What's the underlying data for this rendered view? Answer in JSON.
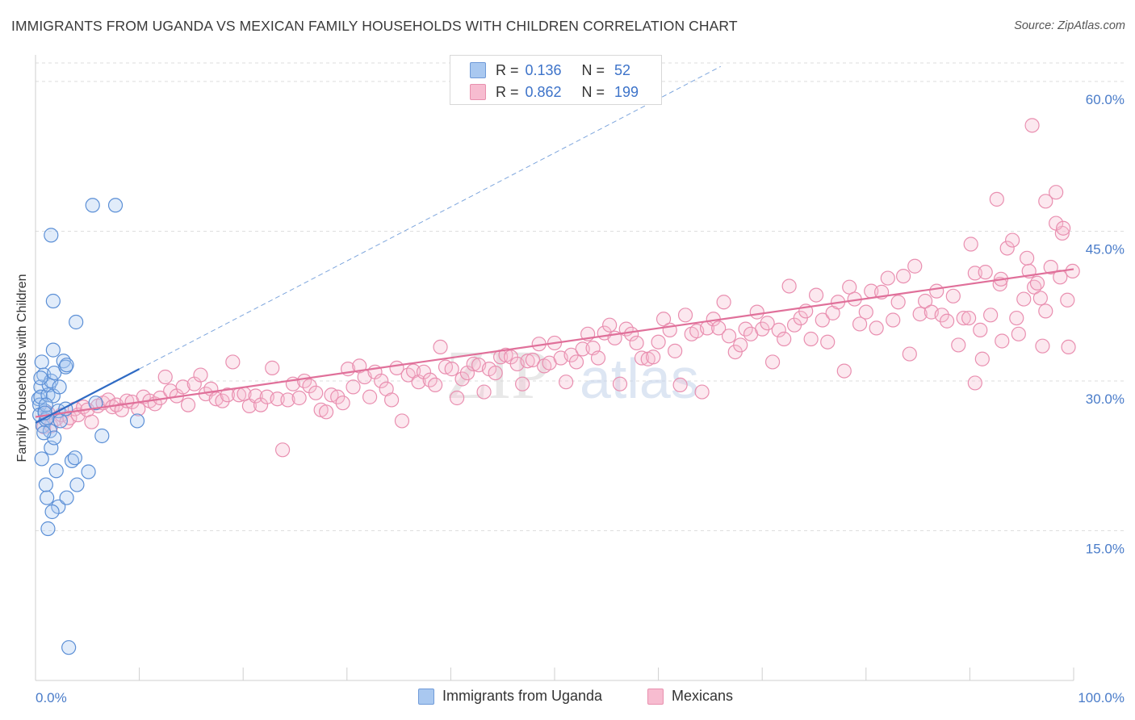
{
  "header": {
    "title": "IMMIGRANTS FROM UGANDA VS MEXICAN FAMILY HOUSEHOLDS WITH CHILDREN CORRELATION CHART",
    "source": "Source: ZipAtlas.com"
  },
  "watermark": {
    "text_zip": "ZIP",
    "text_atlas": "atlas"
  },
  "legend": {
    "rows": [
      {
        "r_label": "R =",
        "r_value": "0.136",
        "n_label": "N =",
        "n_value": "52",
        "color": "#a9c8f0",
        "border": "#6f9ad8"
      },
      {
        "r_label": "R =",
        "r_value": "0.862",
        "n_label": "N =",
        "n_value": "199",
        "color": "#f7bcd0",
        "border": "#e890ae"
      }
    ]
  },
  "bottom_legend": {
    "items": [
      {
        "label": "Immigrants from Uganda",
        "color": "#a9c8f0",
        "border": "#6f9ad8"
      },
      {
        "label": "Mexicans",
        "color": "#f7bcd0",
        "border": "#e890ae"
      }
    ]
  },
  "colors": {
    "uganda_fill": "rgba(169,200,240,0.35)",
    "uganda_stroke": "#5b8fd6",
    "uganda_line": "#2f6bc4",
    "mexican_fill": "rgba(247,188,208,0.35)",
    "mexican_stroke": "#e98fb0",
    "mexican_line": "#e0709a",
    "grid": "#dedede",
    "tick_text": "#4a7cc9"
  },
  "chart_data": {
    "type": "scatter",
    "title": "IMMIGRANTS FROM UGANDA VS MEXICAN FAMILY HOUSEHOLDS WITH CHILDREN CORRELATION CHART",
    "xlabel": "",
    "ylabel": "Family Households with Children",
    "x_ticks": [
      "0.0%",
      "100.0%"
    ],
    "y_ticks": [
      "15.0%",
      "30.0%",
      "45.0%",
      "60.0%"
    ],
    "y_tick_values": [
      15,
      30,
      45,
      60
    ],
    "xlim": [
      0,
      100
    ],
    "ylim": [
      0,
      62.5
    ],
    "grid": true,
    "series": [
      {
        "name": "Immigrants from Uganda",
        "r": 0.136,
        "n": 52,
        "trend": {
          "x": [
            0,
            10
          ],
          "y": [
            25.8,
            31.2
          ]
        },
        "trend_extended": {
          "x": [
            10,
            66
          ],
          "y": [
            31.2,
            61.5
          ]
        },
        "points": [
          [
            0.3,
            28.2
          ],
          [
            0.4,
            27.6
          ],
          [
            0.5,
            29.4
          ],
          [
            0.6,
            31.9
          ],
          [
            0.4,
            26.6
          ],
          [
            0.7,
            25.5
          ],
          [
            0.5,
            28.4
          ],
          [
            0.8,
            30.6
          ],
          [
            0.9,
            27.0
          ],
          [
            1.0,
            26.1
          ],
          [
            1.2,
            28.6
          ],
          [
            1.3,
            29.6
          ],
          [
            1.5,
            30.0
          ],
          [
            1.7,
            28.5
          ],
          [
            1.4,
            25.0
          ],
          [
            1.1,
            26.3
          ],
          [
            0.6,
            22.2
          ],
          [
            1.0,
            19.6
          ],
          [
            1.1,
            18.3
          ],
          [
            1.5,
            23.3
          ],
          [
            1.8,
            24.3
          ],
          [
            2.0,
            21.0
          ],
          [
            2.2,
            17.4
          ],
          [
            1.6,
            16.9
          ],
          [
            1.2,
            15.2
          ],
          [
            1.8,
            30.8
          ],
          [
            2.3,
            29.4
          ],
          [
            1.7,
            33.1
          ],
          [
            2.7,
            32.0
          ],
          [
            2.9,
            31.4
          ],
          [
            3.0,
            31.6
          ],
          [
            2.2,
            27.0
          ],
          [
            2.4,
            26.0
          ],
          [
            2.9,
            27.2
          ],
          [
            1.5,
            44.6
          ],
          [
            1.7,
            38.0
          ],
          [
            3.9,
            35.9
          ],
          [
            5.5,
            47.6
          ],
          [
            7.7,
            47.6
          ],
          [
            3.0,
            18.3
          ],
          [
            3.5,
            22.0
          ],
          [
            3.8,
            22.3
          ],
          [
            4.0,
            19.6
          ],
          [
            5.1,
            20.9
          ],
          [
            6.4,
            24.5
          ],
          [
            9.8,
            26.0
          ],
          [
            5.8,
            27.8
          ],
          [
            1.0,
            27.6
          ],
          [
            0.8,
            24.8
          ],
          [
            3.2,
            3.3
          ],
          [
            0.9,
            26.8
          ],
          [
            0.5,
            30.3
          ]
        ]
      },
      {
        "name": "Mexicans",
        "r": 0.862,
        "n": 199,
        "trend": {
          "x": [
            0,
            100
          ],
          "y": [
            26.4,
            41.2
          ]
        },
        "points": [
          [
            0.8,
            25.4
          ],
          [
            1.2,
            26.8
          ],
          [
            1.5,
            25.5
          ],
          [
            2.0,
            26.2
          ],
          [
            2.5,
            26.6
          ],
          [
            3.0,
            25.9
          ],
          [
            3.3,
            26.3
          ],
          [
            3.8,
            27.2
          ],
          [
            4.1,
            26.6
          ],
          [
            4.6,
            27.4
          ],
          [
            5.0,
            27.1
          ],
          [
            5.4,
            25.9
          ],
          [
            6.0,
            27.5
          ],
          [
            6.5,
            27.8
          ],
          [
            7.0,
            28.1
          ],
          [
            7.4,
            27.4
          ],
          [
            7.8,
            27.6
          ],
          [
            8.3,
            27.1
          ],
          [
            8.8,
            28.0
          ],
          [
            9.3,
            27.9
          ],
          [
            9.9,
            27.2
          ],
          [
            10.4,
            28.4
          ],
          [
            11.0,
            28.0
          ],
          [
            11.5,
            27.7
          ],
          [
            12.0,
            28.3
          ],
          [
            12.5,
            30.4
          ],
          [
            13.0,
            29.0
          ],
          [
            13.6,
            28.5
          ],
          [
            14.2,
            29.4
          ],
          [
            14.7,
            27.6
          ],
          [
            15.3,
            29.7
          ],
          [
            15.9,
            30.6
          ],
          [
            16.4,
            28.7
          ],
          [
            16.9,
            29.2
          ],
          [
            17.4,
            28.2
          ],
          [
            18.0,
            28.0
          ],
          [
            18.5,
            28.6
          ],
          [
            19.0,
            31.9
          ],
          [
            19.6,
            28.6
          ],
          [
            20.1,
            28.7
          ],
          [
            20.6,
            27.5
          ],
          [
            21.2,
            28.5
          ],
          [
            21.7,
            27.6
          ],
          [
            22.3,
            28.4
          ],
          [
            22.8,
            31.3
          ],
          [
            23.3,
            28.2
          ],
          [
            23.8,
            23.1
          ],
          [
            24.3,
            28.1
          ],
          [
            24.8,
            29.7
          ],
          [
            25.4,
            28.3
          ],
          [
            25.9,
            30.0
          ],
          [
            26.4,
            29.5
          ],
          [
            27.0,
            28.8
          ],
          [
            27.5,
            27.1
          ],
          [
            28.0,
            26.9
          ],
          [
            28.5,
            28.6
          ],
          [
            29.1,
            28.4
          ],
          [
            29.6,
            27.8
          ],
          [
            30.1,
            31.2
          ],
          [
            30.6,
            29.4
          ],
          [
            31.2,
            31.5
          ],
          [
            31.7,
            30.4
          ],
          [
            32.2,
            28.4
          ],
          [
            32.7,
            30.9
          ],
          [
            33.3,
            30.0
          ],
          [
            33.8,
            29.2
          ],
          [
            34.3,
            28.1
          ],
          [
            34.8,
            31.3
          ],
          [
            35.3,
            26.0
          ],
          [
            35.9,
            30.6
          ],
          [
            36.4,
            31.0
          ],
          [
            36.9,
            29.9
          ],
          [
            37.4,
            30.9
          ],
          [
            38.0,
            30.1
          ],
          [
            38.5,
            29.6
          ],
          [
            39.0,
            33.4
          ],
          [
            39.5,
            31.4
          ],
          [
            40.1,
            31.2
          ],
          [
            40.6,
            28.3
          ],
          [
            41.1,
            30.2
          ],
          [
            41.6,
            30.8
          ],
          [
            42.2,
            31.7
          ],
          [
            42.7,
            31.6
          ],
          [
            43.2,
            28.9
          ],
          [
            43.7,
            31.2
          ],
          [
            44.3,
            30.8
          ],
          [
            44.8,
            32.4
          ],
          [
            45.3,
            32.6
          ],
          [
            45.8,
            32.4
          ],
          [
            46.4,
            31.7
          ],
          [
            46.9,
            29.7
          ],
          [
            47.4,
            32.0
          ],
          [
            47.9,
            32.1
          ],
          [
            48.5,
            33.7
          ],
          [
            49.0,
            31.5
          ],
          [
            49.5,
            31.8
          ],
          [
            50.0,
            33.8
          ],
          [
            50.6,
            32.3
          ],
          [
            51.1,
            29.9
          ],
          [
            51.6,
            32.6
          ],
          [
            52.1,
            31.9
          ],
          [
            52.7,
            33.2
          ],
          [
            53.2,
            34.7
          ],
          [
            53.7,
            33.3
          ],
          [
            54.2,
            32.3
          ],
          [
            54.8,
            34.8
          ],
          [
            55.3,
            35.6
          ],
          [
            55.8,
            34.3
          ],
          [
            56.3,
            29.7
          ],
          [
            56.9,
            35.2
          ],
          [
            57.4,
            34.7
          ],
          [
            57.9,
            33.8
          ],
          [
            58.4,
            32.3
          ],
          [
            59.0,
            32.2
          ],
          [
            59.5,
            32.4
          ],
          [
            60.0,
            33.9
          ],
          [
            60.5,
            36.2
          ],
          [
            61.1,
            35.1
          ],
          [
            61.6,
            33.0
          ],
          [
            62.1,
            29.6
          ],
          [
            62.6,
            36.6
          ],
          [
            63.2,
            34.7
          ],
          [
            63.7,
            35.0
          ],
          [
            64.2,
            28.9
          ],
          [
            64.7,
            35.3
          ],
          [
            65.3,
            36.2
          ],
          [
            65.8,
            35.3
          ],
          [
            66.3,
            37.9
          ],
          [
            66.8,
            34.5
          ],
          [
            67.4,
            32.9
          ],
          [
            67.9,
            33.6
          ],
          [
            68.4,
            35.2
          ],
          [
            68.9,
            34.7
          ],
          [
            69.5,
            36.9
          ],
          [
            70.0,
            35.2
          ],
          [
            70.5,
            35.8
          ],
          [
            71.0,
            31.9
          ],
          [
            71.6,
            35.1
          ],
          [
            72.1,
            34.2
          ],
          [
            72.6,
            39.5
          ],
          [
            73.1,
            35.6
          ],
          [
            73.7,
            36.3
          ],
          [
            74.2,
            37.0
          ],
          [
            74.7,
            34.2
          ],
          [
            75.2,
            38.6
          ],
          [
            75.8,
            36.1
          ],
          [
            76.3,
            33.9
          ],
          [
            76.8,
            36.8
          ],
          [
            77.3,
            37.9
          ],
          [
            77.9,
            31.0
          ],
          [
            78.4,
            39.4
          ],
          [
            78.9,
            38.2
          ],
          [
            79.4,
            35.7
          ],
          [
            80.0,
            36.9
          ],
          [
            80.5,
            39.0
          ],
          [
            81.0,
            35.3
          ],
          [
            81.5,
            38.9
          ],
          [
            82.1,
            40.3
          ],
          [
            82.6,
            36.1
          ],
          [
            83.1,
            37.9
          ],
          [
            83.6,
            40.5
          ],
          [
            84.2,
            32.7
          ],
          [
            84.7,
            41.5
          ],
          [
            85.2,
            36.7
          ],
          [
            85.7,
            38.0
          ],
          [
            86.3,
            36.9
          ],
          [
            86.8,
            39.0
          ],
          [
            87.3,
            36.6
          ],
          [
            87.8,
            36.0
          ],
          [
            88.4,
            38.5
          ],
          [
            88.9,
            33.6
          ],
          [
            89.4,
            36.3
          ],
          [
            89.9,
            36.3
          ],
          [
            90.5,
            40.8
          ],
          [
            91.0,
            35.1
          ],
          [
            91.5,
            40.9
          ],
          [
            92.0,
            36.6
          ],
          [
            92.6,
            48.2
          ],
          [
            93.1,
            34.0
          ],
          [
            93.6,
            43.3
          ],
          [
            94.1,
            44.1
          ],
          [
            94.7,
            34.7
          ],
          [
            95.2,
            38.2
          ],
          [
            95.7,
            41.0
          ],
          [
            96.2,
            39.4
          ],
          [
            96.8,
            38.3
          ],
          [
            97.3,
            37.0
          ],
          [
            97.8,
            41.4
          ],
          [
            98.3,
            48.9
          ],
          [
            98.9,
            44.8
          ],
          [
            99.4,
            38.1
          ],
          [
            99.9,
            41.0
          ],
          [
            96.0,
            55.6
          ],
          [
            97.3,
            48.0
          ],
          [
            98.3,
            45.8
          ],
          [
            99.0,
            45.3
          ],
          [
            95.5,
            42.3
          ],
          [
            97.0,
            33.5
          ],
          [
            94.5,
            36.3
          ],
          [
            92.9,
            39.7
          ],
          [
            91.2,
            32.2
          ],
          [
            90.1,
            43.7
          ],
          [
            93.0,
            40.2
          ],
          [
            96.5,
            39.8
          ],
          [
            98.7,
            40.4
          ],
          [
            99.5,
            33.4
          ],
          [
            90.5,
            29.8
          ]
        ]
      }
    ]
  }
}
